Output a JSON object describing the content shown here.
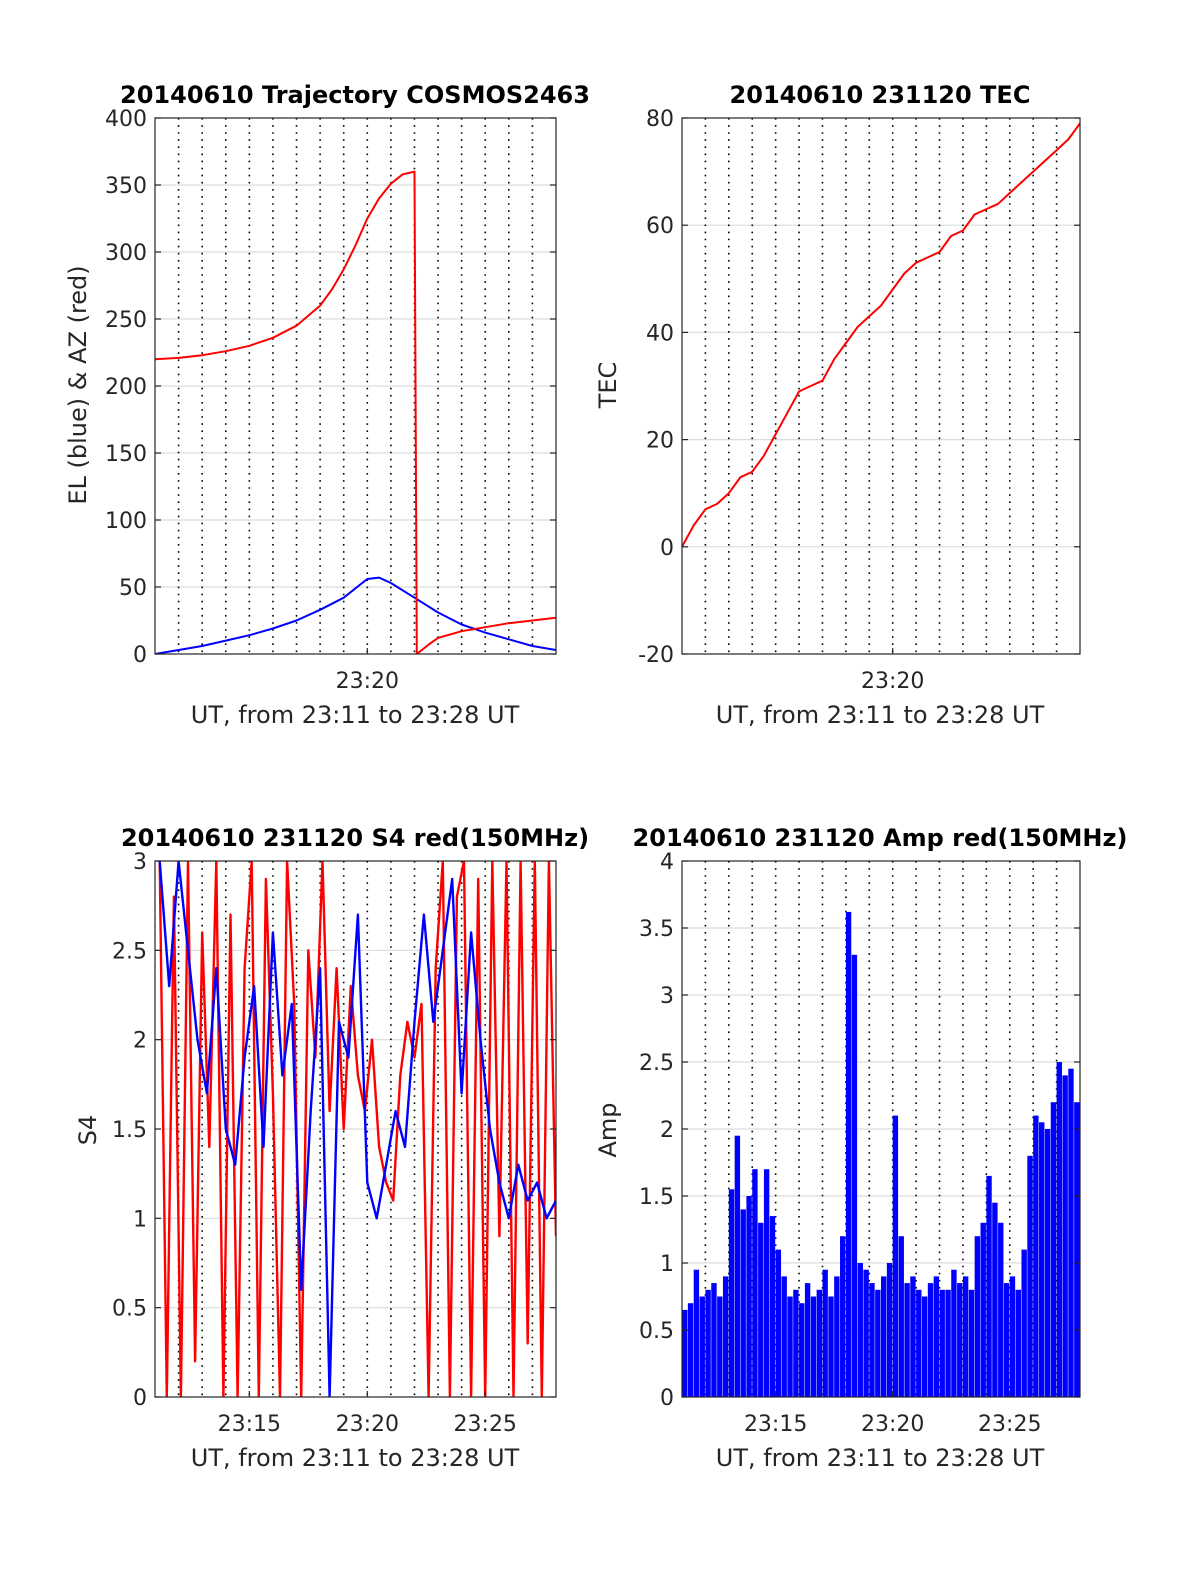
{
  "figure_background": "#ffffff",
  "colors": {
    "red": "#ff0000",
    "blue": "#0000ff",
    "axis": "#262626",
    "grid": "#dcdcdc",
    "vgrid": "#000000"
  },
  "chart_data": [
    {
      "id": "trajectory",
      "type": "line",
      "title": "20140610 Trajectory COSMOS2463",
      "xlabel": "UT, from 23:11 to 23:28 UT",
      "ylabel": "EL (blue) & AZ (red)",
      "xlim_minutes": [
        0,
        17
      ],
      "ylim": [
        0,
        400
      ],
      "yticks": [
        0,
        50,
        100,
        150,
        200,
        250,
        300,
        350,
        400
      ],
      "xticks": [
        {
          "t": 9,
          "label": "23:20"
        }
      ],
      "grid": true,
      "vertical_dotted_grid_minutes": [
        1,
        2,
        3,
        4,
        5,
        6,
        7,
        8,
        9,
        10,
        11,
        12,
        13,
        14,
        15,
        16
      ],
      "series": [
        {
          "name": "EL (blue)",
          "color": "#0000ff",
          "x_minutes": [
            0,
            1,
            2,
            3,
            4,
            5,
            6,
            7,
            8,
            8.5,
            9,
            9.5,
            10,
            11,
            12,
            13,
            14,
            15,
            16,
            17
          ],
          "y": [
            0,
            3,
            6,
            10,
            14,
            19,
            25,
            33,
            42,
            49,
            56,
            57,
            53,
            42,
            31,
            22,
            16,
            11,
            6,
            3
          ]
        },
        {
          "name": "AZ (red)",
          "color": "#ff0000",
          "x_minutes": [
            0,
            1,
            2,
            3,
            4,
            5,
            6,
            7,
            7.5,
            8,
            8.5,
            9,
            9.5,
            10,
            10.5,
            11,
            11.1,
            11.6,
            12,
            13,
            14,
            15,
            16,
            17
          ],
          "y": [
            220,
            221,
            223,
            226,
            230,
            236,
            245,
            260,
            272,
            287,
            305,
            325,
            340,
            351,
            358,
            360,
            0,
            7,
            12,
            17,
            20,
            23,
            25,
            27
          ]
        }
      ]
    },
    {
      "id": "tec",
      "type": "line",
      "title": "20140610 231120 TEC",
      "xlabel": "UT, from 23:11 to 23:28 UT",
      "ylabel": "TEC",
      "xlim_minutes": [
        0,
        17
      ],
      "ylim": [
        -20,
        80
      ],
      "yticks": [
        -20,
        0,
        20,
        40,
        60,
        80
      ],
      "xticks": [
        {
          "t": 9,
          "label": "23:20"
        }
      ],
      "grid": true,
      "vertical_dotted_grid_minutes": [
        1,
        2,
        3,
        4,
        5,
        6,
        7,
        8,
        9,
        10,
        11,
        12,
        13,
        14,
        15,
        16
      ],
      "series": [
        {
          "name": "TEC",
          "color": "#ff0000",
          "x_minutes": [
            0,
            0.5,
            1,
            1.5,
            2,
            2.5,
            3,
            3.5,
            4,
            4.5,
            5,
            5.5,
            6,
            6.5,
            7,
            7.5,
            8,
            8.5,
            9,
            9.5,
            10,
            10.5,
            11,
            11.5,
            12,
            12.5,
            13,
            13.5,
            14,
            14.5,
            15,
            15.5,
            16,
            16.5,
            17
          ],
          "y": [
            0,
            4,
            7,
            8,
            10,
            13,
            14,
            17,
            21,
            25,
            29,
            30,
            31,
            35,
            38,
            41,
            43,
            45,
            48,
            51,
            53,
            54,
            55,
            58,
            59,
            62,
            63,
            64,
            66,
            68,
            70,
            72,
            74,
            76,
            79
          ]
        }
      ]
    },
    {
      "id": "s4",
      "type": "line",
      "title": "20140610 231120 S4 red(150MHz)",
      "xlabel": "UT, from 23:11 to 23:28 UT",
      "ylabel": "S4",
      "xlim_minutes": [
        0,
        17
      ],
      "ylim": [
        0,
        3
      ],
      "yticks": [
        0,
        0.5,
        1,
        1.5,
        2,
        2.5,
        3
      ],
      "xticks": [
        {
          "t": 4,
          "label": "23:15"
        },
        {
          "t": 9,
          "label": "23:20"
        },
        {
          "t": 14,
          "label": "23:25"
        }
      ],
      "grid": true,
      "vertical_dotted_grid_minutes": [
        1,
        2,
        3,
        4,
        5,
        6,
        7,
        8,
        9,
        10,
        11,
        12,
        13,
        14,
        15,
        16
      ],
      "series": [
        {
          "name": "red(150MHz)",
          "color": "#ff0000",
          "x_minutes": [
            0.2,
            0.5,
            0.8,
            1.1,
            1.4,
            1.7,
            2.0,
            2.3,
            2.6,
            2.9,
            3.2,
            3.5,
            3.8,
            4.1,
            4.4,
            4.7,
            5.0,
            5.3,
            5.6,
            5.9,
            6.2,
            6.5,
            6.8,
            7.1,
            7.4,
            7.7,
            8.0,
            8.3,
            8.6,
            8.9,
            9.2,
            9.5,
            9.8,
            10.1,
            10.4,
            10.7,
            11.0,
            11.3,
            11.6,
            11.9,
            12.2,
            12.5,
            12.8,
            13.1,
            13.4,
            13.7,
            14.0,
            14.3,
            14.6,
            14.9,
            15.2,
            15.5,
            15.8,
            16.1,
            16.4,
            16.7,
            17.0
          ],
          "y": [
            3.0,
            0.0,
            2.8,
            0.0,
            3.0,
            0.2,
            2.6,
            1.4,
            3.0,
            0.0,
            2.7,
            0.0,
            2.4,
            3.0,
            0.0,
            2.9,
            1.7,
            0.0,
            3.0,
            2.2,
            0.0,
            2.5,
            1.9,
            3.0,
            1.6,
            2.4,
            1.5,
            2.3,
            1.8,
            1.6,
            2.0,
            1.4,
            1.2,
            1.1,
            1.8,
            2.1,
            1.9,
            2.2,
            0.0,
            2.4,
            3.0,
            0.0,
            2.8,
            3.0,
            0.0,
            2.9,
            0.0,
            3.0,
            0.9,
            3.0,
            0.0,
            3.0,
            0.3,
            3.0,
            0.0,
            3.0,
            0.9
          ]
        },
        {
          "name": "blue",
          "color": "#0000ff",
          "x_minutes": [
            0.2,
            0.6,
            1.0,
            1.4,
            1.8,
            2.2,
            2.6,
            3.0,
            3.4,
            3.8,
            4.2,
            4.6,
            5.0,
            5.4,
            5.8,
            6.2,
            6.6,
            7.0,
            7.4,
            7.8,
            8.2,
            8.6,
            9.0,
            9.4,
            9.8,
            10.2,
            10.6,
            11.0,
            11.4,
            11.8,
            12.2,
            12.6,
            13.0,
            13.4,
            13.8,
            14.2,
            14.6,
            15.0,
            15.4,
            15.8,
            16.2,
            16.6,
            17.0
          ],
          "y": [
            3.0,
            2.3,
            3.0,
            2.5,
            2.0,
            1.7,
            2.4,
            1.5,
            1.3,
            1.9,
            2.3,
            1.4,
            2.6,
            1.8,
            2.2,
            0.6,
            1.6,
            2.4,
            0.0,
            2.1,
            1.9,
            2.7,
            1.2,
            1.0,
            1.3,
            1.6,
            1.4,
            2.1,
            2.7,
            2.1,
            2.5,
            2.9,
            1.7,
            2.6,
            2.0,
            1.5,
            1.2,
            1.0,
            1.3,
            1.1,
            1.2,
            1.0,
            1.1
          ]
        }
      ]
    },
    {
      "id": "amp",
      "type": "bar",
      "title": "20140610 231120 Amp red(150MHz)",
      "xlabel": "UT, from 23:11 to 23:28 UT",
      "ylabel": "Amp",
      "xlim_minutes": [
        0,
        17
      ],
      "ylim": [
        0,
        4
      ],
      "yticks": [
        0,
        0.5,
        1,
        1.5,
        2,
        2.5,
        3,
        3.5,
        4
      ],
      "xticks": [
        {
          "t": 4,
          "label": "23:15"
        },
        {
          "t": 9,
          "label": "23:20"
        },
        {
          "t": 14,
          "label": "23:25"
        }
      ],
      "grid": true,
      "vertical_dotted_grid_minutes": [
        1,
        2,
        3,
        4,
        5,
        6,
        7,
        8,
        9,
        10,
        11,
        12,
        13,
        14,
        15,
        16
      ],
      "series": [
        {
          "name": "Amp",
          "color": "#0000ff",
          "x_minutes": [
            0.0,
            0.25,
            0.5,
            0.75,
            1.0,
            1.25,
            1.5,
            1.75,
            2.0,
            2.25,
            2.5,
            2.75,
            3.0,
            3.25,
            3.5,
            3.75,
            4.0,
            4.25,
            4.5,
            4.75,
            5.0,
            5.25,
            5.5,
            5.75,
            6.0,
            6.25,
            6.5,
            6.75,
            7.0,
            7.25,
            7.5,
            7.75,
            8.0,
            8.25,
            8.5,
            8.75,
            9.0,
            9.25,
            9.5,
            9.75,
            10.0,
            10.25,
            10.5,
            10.75,
            11.0,
            11.25,
            11.5,
            11.75,
            12.0,
            12.25,
            12.5,
            12.75,
            13.0,
            13.25,
            13.5,
            13.75,
            14.0,
            14.25,
            14.5,
            14.75,
            15.0,
            15.25,
            15.5,
            15.75,
            16.0,
            16.25,
            16.5,
            16.75,
            17.0
          ],
          "y": [
            0.65,
            0.7,
            0.95,
            0.75,
            0.8,
            0.85,
            0.75,
            0.9,
            1.55,
            1.95,
            1.4,
            1.5,
            1.7,
            1.3,
            1.7,
            1.35,
            1.1,
            0.9,
            0.75,
            0.8,
            0.7,
            0.85,
            0.75,
            0.8,
            0.95,
            0.75,
            0.9,
            1.2,
            3.62,
            3.3,
            1.0,
            0.95,
            0.85,
            0.8,
            0.9,
            1.0,
            2.1,
            1.2,
            0.85,
            0.9,
            0.8,
            0.75,
            0.85,
            0.9,
            0.8,
            0.8,
            0.95,
            0.85,
            0.9,
            0.8,
            1.2,
            1.3,
            1.65,
            1.45,
            1.3,
            0.85,
            0.9,
            0.8,
            1.1,
            1.8,
            2.1,
            2.05,
            2.0,
            2.2,
            2.5,
            2.4,
            2.45,
            2.2,
            2.55
          ]
        }
      ]
    }
  ]
}
